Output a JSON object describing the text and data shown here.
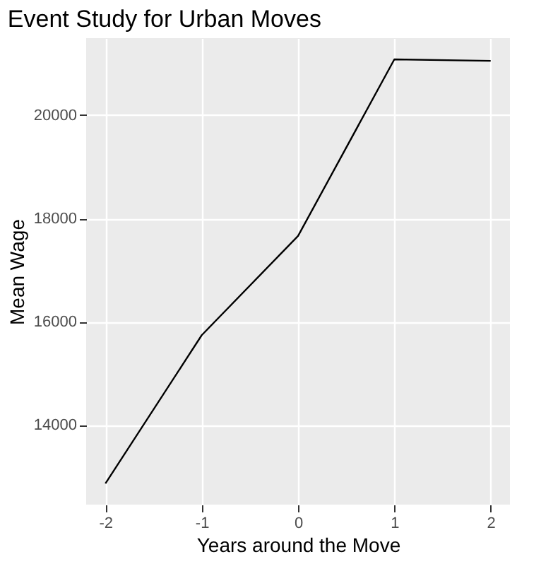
{
  "chart_data": {
    "type": "line",
    "title": "Event Study for Urban Moves",
    "xlabel": "Years around the Move",
    "ylabel": "Mean Wage",
    "x": [
      -2,
      -1,
      0,
      1,
      2
    ],
    "series": [
      {
        "color": "#000000",
        "values": [
          12870,
          15740,
          17660,
          21080,
          21050
        ]
      }
    ],
    "xlim": [
      -2.2,
      2.2
    ],
    "xticks": [
      -2,
      -1,
      0,
      1,
      2
    ],
    "ylim": [
      12460,
      21490
    ],
    "yticks": [
      14000,
      16000,
      18000,
      20000
    ],
    "grid": true,
    "marker": "none",
    "line_style": "solid"
  }
}
